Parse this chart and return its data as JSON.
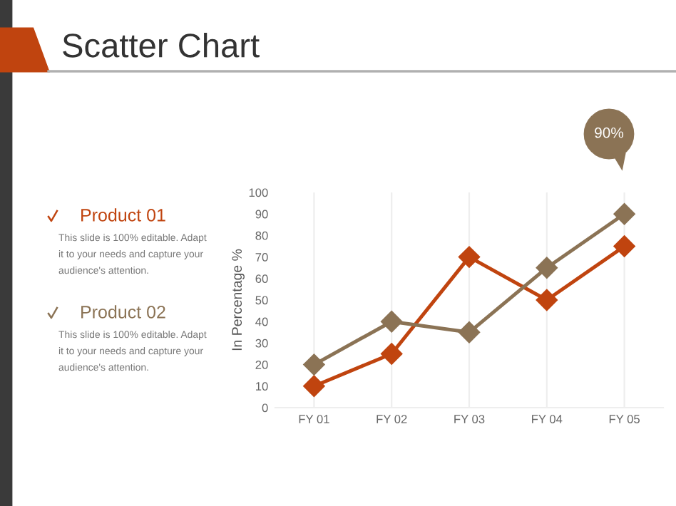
{
  "chart_data": {
    "type": "line",
    "title": "Scatter Chart",
    "ylabel": "In Percentage %",
    "categories": [
      "FY 01",
      "FY 02",
      "FY 03",
      "FY 04",
      "FY 05"
    ],
    "series": [
      {
        "name": "Product 01",
        "color": "#c0440f",
        "values": [
          10,
          25,
          70,
          50,
          75
        ]
      },
      {
        "name": "Product 02",
        "color": "#8b7355",
        "values": [
          20,
          40,
          35,
          65,
          90
        ]
      }
    ],
    "ylim": [
      0,
      100
    ],
    "yticks": [
      0,
      10,
      20,
      30,
      40,
      50,
      60,
      70,
      80,
      90,
      100
    ],
    "grid": "x",
    "legend": "left",
    "marker": "diamond",
    "line_style": "solid",
    "annotations": [
      "This slide is 100% editable. Adapt it to your needs and capture your audience's attention.",
      "This slide is 100% editable. Adapt it to your needs and capture your audience's attention.",
      "90%"
    ]
  }
}
